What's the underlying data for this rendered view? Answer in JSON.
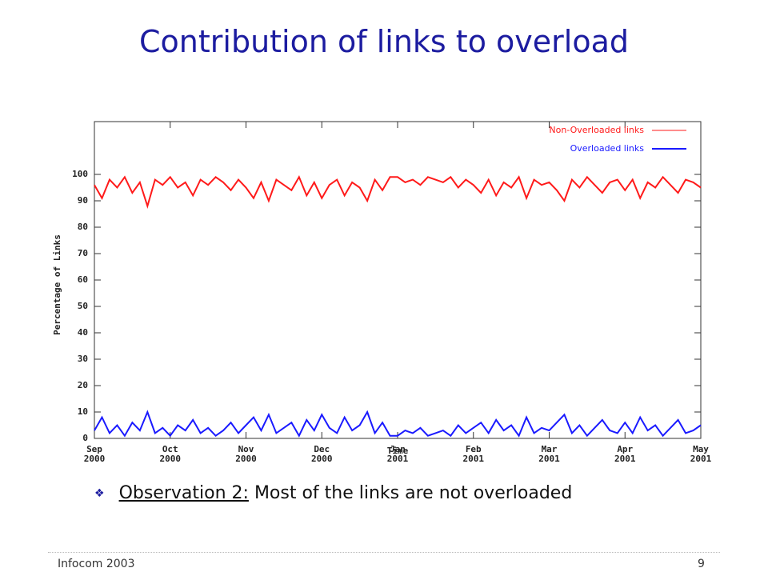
{
  "slide_title": "Contribution of links to overload",
  "bullet": {
    "label": "Observation 2:",
    "text": "Most of the links are not overloaded"
  },
  "footer": {
    "left": "Infocom 2003",
    "page": "9"
  },
  "chart_data": {
    "type": "line",
    "ylabel": "Percentage of Links",
    "xlabel": "Time",
    "xlim": [
      0,
      8
    ],
    "ylim": [
      0,
      120
    ],
    "yticks": [
      0,
      10,
      20,
      30,
      40,
      50,
      60,
      70,
      80,
      90,
      100
    ],
    "xticks": [
      {
        "value": 0,
        "label": "Sep\n2000"
      },
      {
        "value": 1,
        "label": "Oct\n2000"
      },
      {
        "value": 2,
        "label": "Nov\n2000"
      },
      {
        "value": 3,
        "label": "Dec\n2000"
      },
      {
        "value": 4,
        "label": "Jan\n2001"
      },
      {
        "value": 5,
        "label": "Feb\n2001"
      },
      {
        "value": 6,
        "label": "Mar\n2001"
      },
      {
        "value": 7,
        "label": "Apr\n2001"
      },
      {
        "value": 8,
        "label": "May\n2001"
      }
    ],
    "legend": "top-right",
    "x": [
      0,
      0.1,
      0.2,
      0.3,
      0.4,
      0.5,
      0.6,
      0.7,
      0.8,
      0.9,
      1,
      1.1,
      1.2,
      1.3,
      1.4,
      1.5,
      1.6,
      1.7,
      1.8,
      1.9,
      2,
      2.1,
      2.2,
      2.3,
      2.4,
      2.5,
      2.6,
      2.7,
      2.8,
      2.9,
      3,
      3.1,
      3.2,
      3.3,
      3.4,
      3.5,
      3.6,
      3.7,
      3.8,
      3.9,
      4,
      4.1,
      4.2,
      4.3,
      4.4,
      4.5,
      4.6,
      4.7,
      4.8,
      4.9,
      5,
      5.1,
      5.2,
      5.3,
      5.4,
      5.5,
      5.6,
      5.7,
      5.8,
      5.9,
      6,
      6.1,
      6.2,
      6.3,
      6.4,
      6.5,
      6.6,
      6.7,
      6.8,
      6.9,
      7,
      7.1,
      7.2,
      7.3,
      7.4,
      7.5,
      7.6,
      7.7,
      7.8,
      7.9,
      8
    ],
    "series": [
      {
        "name": "Non-Overloaded links",
        "color": "#ff1a1a",
        "values": [
          96,
          91,
          98,
          95,
          99,
          93,
          97,
          88,
          98,
          96,
          99,
          95,
          97,
          92,
          98,
          96,
          99,
          97,
          94,
          98,
          95,
          91,
          97,
          90,
          98,
          96,
          94,
          99,
          92,
          97,
          91,
          96,
          98,
          92,
          97,
          95,
          90,
          98,
          94,
          99,
          99,
          97,
          98,
          96,
          99,
          98,
          97,
          99,
          95,
          98,
          96,
          93,
          98,
          92,
          97,
          95,
          99,
          91,
          98,
          96,
          97,
          94,
          90,
          98,
          95,
          99,
          96,
          93,
          97,
          98,
          94,
          98,
          91,
          97,
          95,
          99,
          96,
          93,
          98,
          97,
          95
        ]
      },
      {
        "name": "Overloaded links",
        "color": "#1a1aff",
        "values": [
          3,
          8,
          2,
          5,
          1,
          6,
          3,
          10,
          2,
          4,
          1,
          5,
          3,
          7,
          2,
          4,
          1,
          3,
          6,
          2,
          5,
          8,
          3,
          9,
          2,
          4,
          6,
          1,
          7,
          3,
          9,
          4,
          2,
          8,
          3,
          5,
          10,
          2,
          6,
          1,
          1,
          3,
          2,
          4,
          1,
          2,
          3,
          1,
          5,
          2,
          4,
          6,
          2,
          7,
          3,
          5,
          1,
          8,
          2,
          4,
          3,
          6,
          9,
          2,
          5,
          1,
          4,
          7,
          3,
          2,
          6,
          2,
          8,
          3,
          5,
          1,
          4,
          7,
          2,
          3,
          5
        ]
      }
    ]
  }
}
